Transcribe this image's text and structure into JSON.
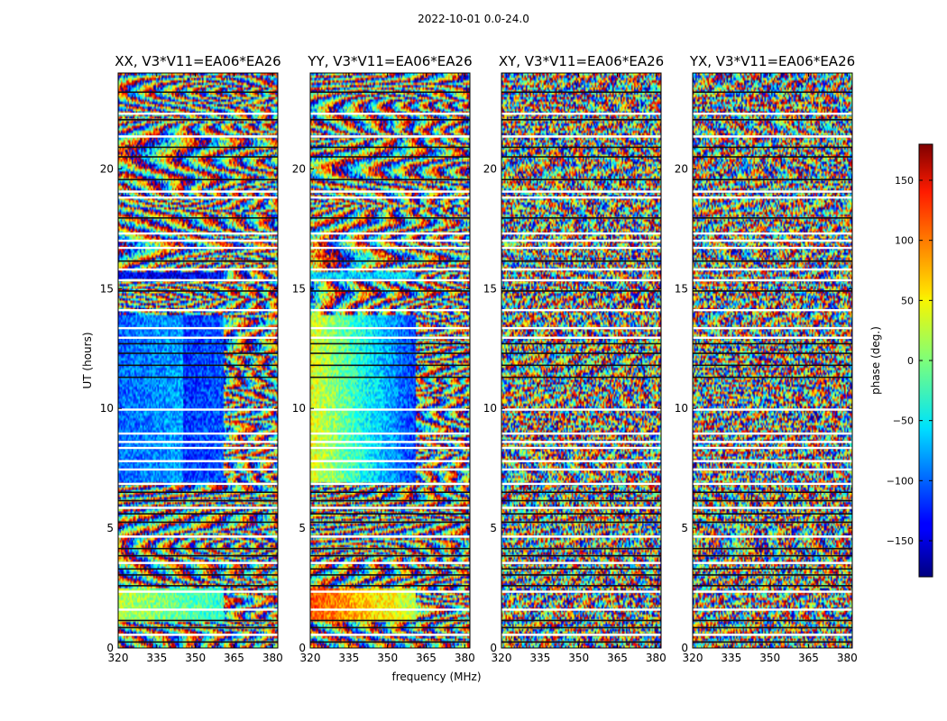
{
  "chart_data": {
    "type": "heatmap",
    "suptitle": "2022-10-01 0.0-24.0",
    "xlabel": "frequency (MHz)",
    "ylabel": "UT (hours)",
    "xlim": [
      320,
      382
    ],
    "ylim": [
      0,
      24
    ],
    "xticks": [
      320,
      335,
      350,
      365,
      380
    ],
    "yticks": [
      0,
      5,
      10,
      15,
      20
    ],
    "colorbar": {
      "label": "phase (deg.)",
      "range": [
        -180,
        180
      ],
      "ticks": [
        150,
        100,
        50,
        0,
        -50,
        -100,
        -150
      ],
      "tick_labels": [
        "150",
        "100",
        "50",
        "0",
        "−50",
        "−100",
        "−150"
      ],
      "colormap": "jet"
    },
    "panels": [
      {
        "title": "XX, V3*V11=EA06*EA26",
        "calibrated_block": true,
        "pattern": "xx"
      },
      {
        "title": "YY, V3*V11=EA06*EA26",
        "calibrated_block": true,
        "pattern": "yy"
      },
      {
        "title": "XY, V3*V11=EA06*EA26",
        "calibrated_block": false,
        "pattern": "cross"
      },
      {
        "title": "YX, V3*V11=EA06*EA26",
        "calibrated_block": false,
        "pattern": "cross"
      }
    ],
    "flagged_white_ut": [
      0.55,
      1.6,
      2.35,
      3.55,
      4.65,
      5.85,
      6.85,
      7.45,
      7.8,
      8.35,
      8.6,
      8.95,
      9.95,
      12.95,
      13.35,
      14.1,
      15.35,
      15.8,
      16.7,
      17.0,
      17.3,
      18.8,
      19.05,
      21.35,
      22.3
    ],
    "dark_line_ut": [
      0.25,
      0.85,
      1.15,
      2.6,
      3.05,
      3.3,
      3.85,
      4.15,
      5.25,
      5.6,
      6.15,
      6.5,
      11.3,
      11.8,
      12.3,
      12.7,
      14.9,
      16.15,
      17.95,
      19.55,
      20.5,
      20.9,
      22.05,
      23.2
    ]
  }
}
